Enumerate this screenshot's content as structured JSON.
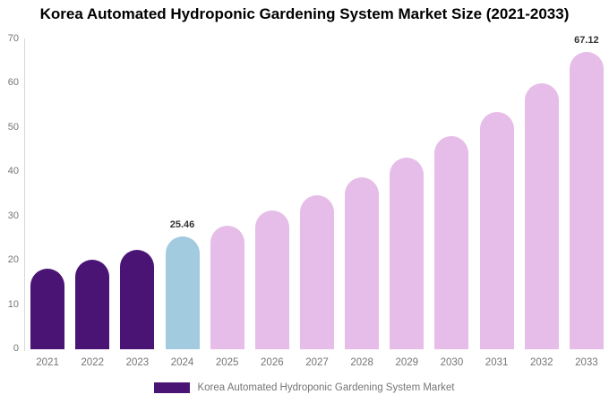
{
  "chart_data": {
    "type": "bar",
    "title": "Korea Automated Hydroponic Gardening System Market Size (2021-2033)",
    "categories": [
      "2021",
      "2022",
      "2023",
      "2024",
      "2025",
      "2026",
      "2027",
      "2028",
      "2029",
      "2030",
      "2031",
      "2032",
      "2033"
    ],
    "values": [
      18.2,
      20.2,
      22.5,
      25.46,
      28.0,
      31.3,
      34.9,
      38.8,
      43.3,
      48.2,
      53.7,
      60.0,
      67.12
    ],
    "bar_colors": [
      "#4A1475",
      "#4A1475",
      "#4A1475",
      "#A2CBE0",
      "#E6BDE8",
      "#E6BDE8",
      "#E6BDE8",
      "#E6BDE8",
      "#E6BDE8",
      "#E6BDE8",
      "#E6BDE8",
      "#E6BDE8",
      "#E6BDE8"
    ],
    "data_labels": [
      {
        "category": "2024",
        "text": "25.46"
      },
      {
        "category": "2033",
        "text": "67.12"
      }
    ],
    "xlabel": "",
    "ylabel": "",
    "ylim": [
      0,
      70
    ],
    "yticks": [
      0,
      10,
      20,
      30,
      40,
      50,
      60,
      70
    ],
    "grid": false,
    "legend": {
      "position": "bottom",
      "label": "Korea Automated Hydroponic Gardening System Market",
      "color": "#4A1475"
    },
    "color_roles": {
      "historical": "#4A1475",
      "base_year": "#A2CBE0",
      "forecast": "#E6BDE8"
    },
    "text_colors": {
      "title": "#000000",
      "axis_labels": "#757575",
      "data_labels": "#333333",
      "axis_line": "#d9d9d9"
    }
  }
}
